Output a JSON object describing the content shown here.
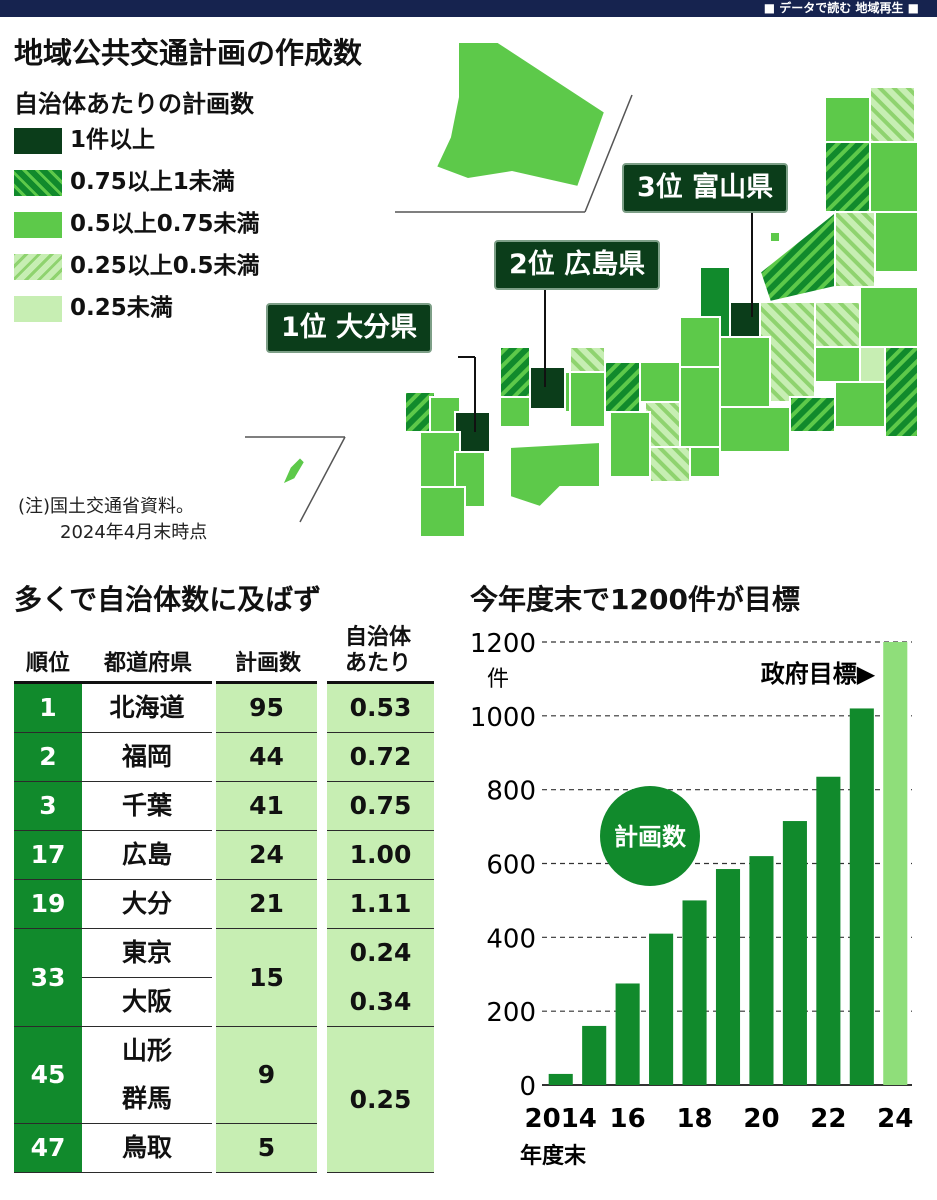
{
  "header": {
    "label": "■ データで読む 地域再生 ■"
  },
  "map": {
    "title": "地域公共交通計画の作成数",
    "legend_title": "自治体あたりの計画数",
    "legend": [
      {
        "label": "1件以上",
        "color": "#0b3d1a",
        "pattern": "solid"
      },
      {
        "label": "0.75以上1未満",
        "color": "#118a2c",
        "pattern": "hatch"
      },
      {
        "label": "0.5以上0.75未満",
        "color": "#5dc94a",
        "pattern": "solid"
      },
      {
        "label": "0.25以上0.5未満",
        "color": "#a9df8f",
        "pattern": "hatch"
      },
      {
        "label": "0.25未満",
        "color": "#c7eeb3",
        "pattern": "solid"
      }
    ],
    "callouts": {
      "first": "1位 大分県",
      "second": "2位 広島県",
      "third": "3位 富山県"
    },
    "note_line1": "(注)国土交通省資料。",
    "note_line2": "2024年4月末時点"
  },
  "table": {
    "title": "多くで自治体数に及ばず",
    "headers": {
      "rank": "順位",
      "pref": "都道府県",
      "count": "計画数",
      "per_line1": "自治体",
      "per_line2": "あたり"
    },
    "rows": [
      {
        "rank": "1",
        "pref": "北海道",
        "count": "95",
        "per": "0.53"
      },
      {
        "rank": "2",
        "pref": "福岡",
        "count": "44",
        "per": "0.72"
      },
      {
        "rank": "3",
        "pref": "千葉",
        "count": "41",
        "per": "0.75"
      },
      {
        "rank": "17",
        "pref": "広島",
        "count": "24",
        "per": "1.00"
      },
      {
        "rank": "19",
        "pref": "大分",
        "count": "21",
        "per": "1.11"
      },
      {
        "rank": "33",
        "pref": "東京",
        "count": "15",
        "per": "0.24"
      },
      {
        "rank": "",
        "pref": "大阪",
        "count": "",
        "per": "0.34"
      },
      {
        "rank": "45",
        "pref": "山形",
        "count": "9",
        "per": "0.25"
      },
      {
        "rank": "",
        "pref": "群馬",
        "count": "",
        "per": ""
      },
      {
        "rank": "47",
        "pref": "鳥取",
        "count": "5",
        "per": ""
      }
    ]
  },
  "chart_data": {
    "type": "bar",
    "title": "今年度末で1200件が目標",
    "unit": "件",
    "xlabel": "年度末",
    "series_label": "計画数",
    "goal_label": "政府目標▶",
    "x": [
      2014,
      2015,
      2016,
      2017,
      2018,
      2019,
      2020,
      2021,
      2022,
      2023,
      2024
    ],
    "values": [
      30,
      160,
      275,
      410,
      500,
      585,
      620,
      715,
      835,
      1020,
      1200
    ],
    "x_tick_labels": [
      "2014",
      "16",
      "18",
      "20",
      "22",
      "24"
    ],
    "x_tick_years": [
      2014,
      2016,
      2018,
      2020,
      2022,
      2024
    ],
    "y_ticks": [
      0,
      200,
      400,
      600,
      800,
      1000,
      1200
    ],
    "ylim": [
      0,
      1200
    ],
    "colors": {
      "actual": "#118a2c",
      "goal": "#8fde7a"
    },
    "goal_index": 10,
    "grid": "horizontal dashed"
  }
}
